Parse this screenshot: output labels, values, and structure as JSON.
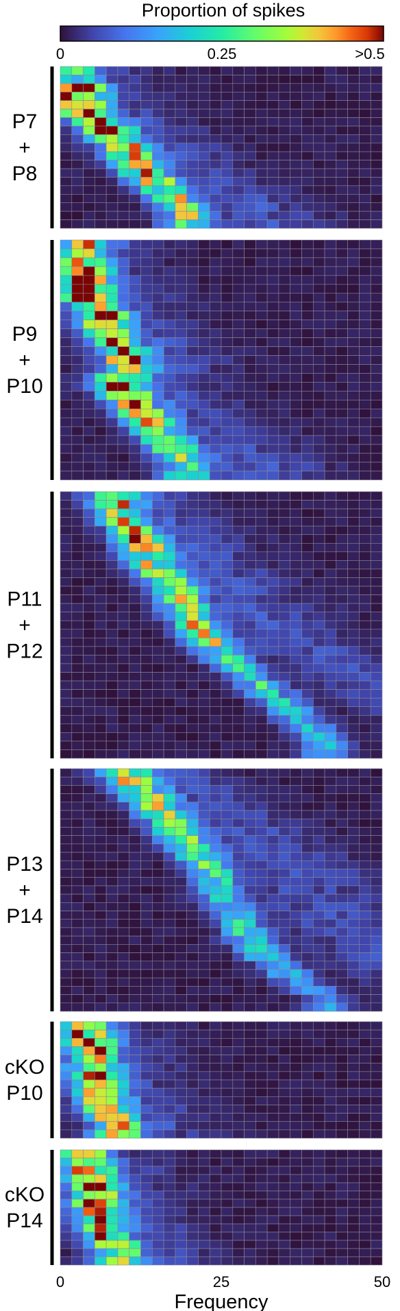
{
  "chart_data": {
    "type": "heatmap",
    "colorbar": {
      "title": "Proportion of spikes",
      "ticks": [
        {
          "value": 0,
          "label": "0"
        },
        {
          "value": 0.25,
          "label": "0.25"
        },
        {
          "value": 0.5,
          "label": ">0.5"
        }
      ],
      "range": [
        0,
        0.5
      ],
      "colormap": "turbo"
    },
    "x_axis": {
      "label": "Frequency",
      "range": [
        0,
        50
      ],
      "ticks": [
        {
          "value": 0,
          "label": "0"
        },
        {
          "value": 25,
          "label": "25"
        },
        {
          "value": 50,
          "label": "50"
        }
      ],
      "bins": 28
    },
    "grid": true,
    "panels": [
      {
        "name": "P7+P8",
        "label_lines": [
          "P7",
          "+",
          "P8"
        ],
        "rows": 19,
        "tracks": [
          [
            0.8,
            0.2
          ],
          [
            1,
            0.5
          ],
          [
            1.5,
            0.5
          ],
          [
            2.5,
            0.5
          ],
          [
            4,
            0.4
          ],
          [
            5.5,
            0.35
          ],
          [
            6.5,
            0.35
          ],
          [
            8,
            0.3
          ],
          [
            9.5,
            0.3
          ],
          [
            10.5,
            0.3
          ]
        ]
      },
      {
        "name": "P9+P10",
        "label_lines": [
          "P9",
          "+",
          "P10"
        ],
        "rows": 27,
        "tracks": [
          [
            1.5,
            0.3
          ],
          [
            1.5,
            0.5
          ],
          [
            1.5,
            0.5
          ],
          [
            2.5,
            0.45
          ],
          [
            3.5,
            0.4
          ],
          [
            4.5,
            0.4
          ],
          [
            5.5,
            0.35
          ],
          [
            4.5,
            0.45
          ],
          [
            6,
            0.35
          ],
          [
            7.5,
            0.3
          ],
          [
            9,
            0.3
          ],
          [
            10.5,
            0.25
          ]
        ]
      },
      {
        "name": "P11+P12",
        "label_lines": [
          "P11",
          "+",
          "P12"
        ],
        "rows": 31,
        "tracks": [
          [
            4,
            0.3
          ],
          [
            5,
            0.35
          ],
          [
            6,
            0.35
          ],
          [
            7,
            0.3
          ],
          [
            8,
            0.3
          ],
          [
            9.5,
            0.35
          ],
          [
            10.5,
            0.32
          ],
          [
            11.5,
            0.3
          ],
          [
            13,
            0.22
          ],
          [
            15,
            0.2
          ],
          [
            17,
            0.18
          ],
          [
            19,
            0.18
          ],
          [
            21,
            0.15
          ],
          [
            22.5,
            0.15
          ]
        ]
      },
      {
        "name": "P13+P14",
        "label_lines": [
          "P13",
          "+",
          "P14"
        ],
        "rows": 29,
        "tracks": [
          [
            5,
            0.3
          ],
          [
            6.5,
            0.3
          ],
          [
            8,
            0.28
          ],
          [
            9,
            0.3
          ],
          [
            10.5,
            0.28
          ],
          [
            12,
            0.25
          ],
          [
            13,
            0.22
          ],
          [
            13.5,
            0.2
          ],
          [
            14.5,
            0.18
          ],
          [
            15.5,
            0.2
          ],
          [
            16.5,
            0.18
          ],
          [
            18,
            0.15
          ],
          [
            20,
            0.13
          ],
          [
            22.5,
            0.12
          ]
        ]
      },
      {
        "name": "cKO P10",
        "label_lines": [
          "cKO",
          "P10"
        ],
        "rows": 14,
        "tracks": [
          [
            1.5,
            0.35
          ],
          [
            2,
            0.4
          ],
          [
            2.5,
            0.35
          ],
          [
            2.5,
            0.4
          ],
          [
            3,
            0.35
          ],
          [
            3.5,
            0.35
          ],
          [
            4.5,
            0.35
          ]
        ]
      },
      {
        "name": "cKO P14",
        "label_lines": [
          "cKO",
          "P14"
        ],
        "rows": 14,
        "tracks": [
          [
            1.5,
            0.35
          ],
          [
            2,
            0.4
          ],
          [
            2.5,
            0.35
          ],
          [
            2.5,
            0.35
          ],
          [
            3,
            0.35
          ],
          [
            3.5,
            0.35
          ],
          [
            4.5,
            0.3
          ]
        ]
      }
    ]
  }
}
